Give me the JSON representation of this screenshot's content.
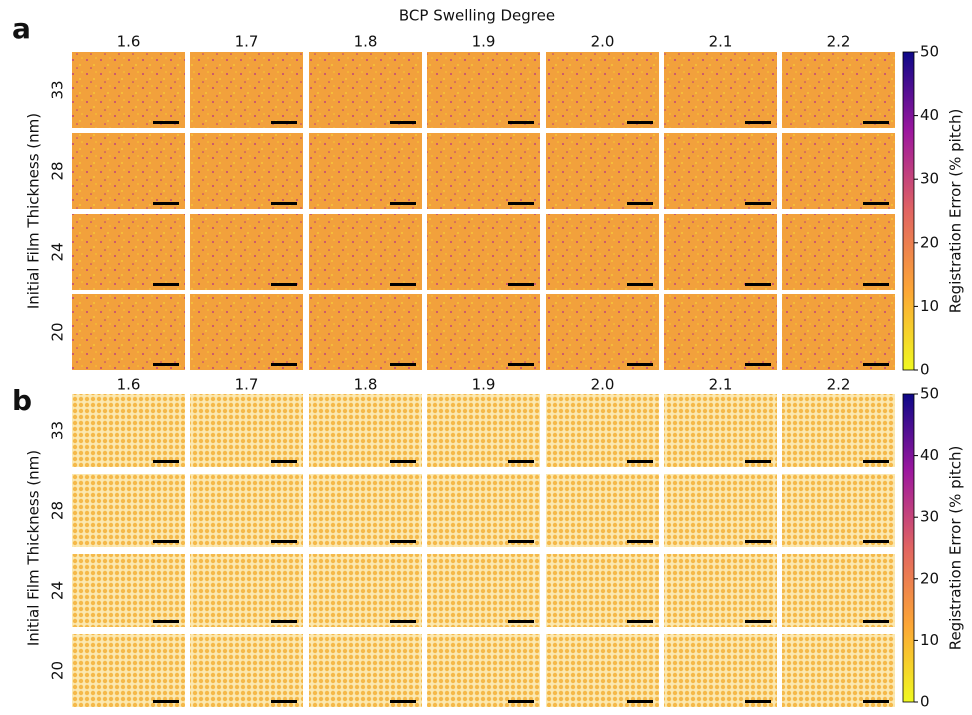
{
  "panels": [
    {
      "label": "a",
      "title": "BCP Swelling Degree",
      "columns": [
        "1.6",
        "1.7",
        "1.8",
        "1.9",
        "2.0",
        "2.1",
        "2.2"
      ],
      "rows": [
        "33",
        "28",
        "24",
        "20"
      ],
      "y_label": "Initial Film Thickness (nm)",
      "colorbar": {
        "label": "Registration Error (% pitch)",
        "lim": [
          0,
          50
        ],
        "ticks": [
          0,
          10,
          20,
          30,
          40,
          50
        ]
      }
    },
    {
      "label": "b",
      "columns": [
        "1.6",
        "1.7",
        "1.8",
        "1.9",
        "2.0",
        "2.1",
        "2.2"
      ],
      "rows": [
        "33",
        "28",
        "24",
        "20"
      ],
      "y_label": "Initial Film Thickness (nm)",
      "colorbar": {
        "label": "Registration Error (% pitch)",
        "lim": [
          0,
          50
        ],
        "ticks": [
          0,
          10,
          20,
          30,
          40,
          50
        ]
      }
    }
  ]
}
